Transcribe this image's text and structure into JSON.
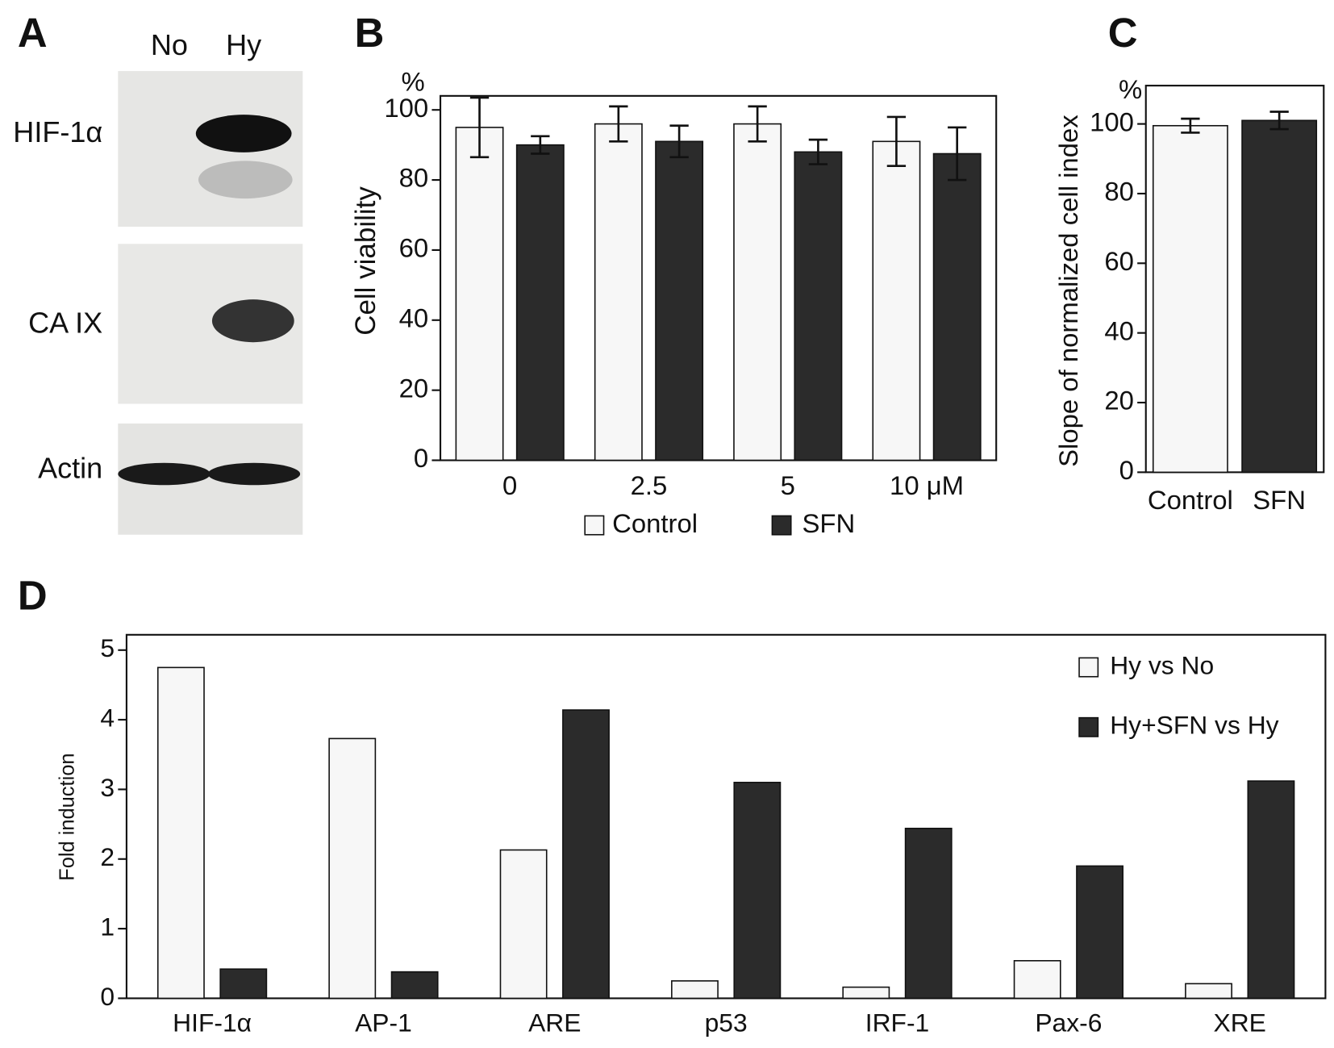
{
  "panel_labels": [
    "A",
    "B",
    "C",
    "D"
  ],
  "blot": {
    "lanes": [
      "No",
      "Hy"
    ],
    "rows": [
      "HIF-1α",
      "CA IX",
      "Actin"
    ]
  },
  "chart_data": [
    {
      "type": "bar",
      "unit": "%",
      "y_label": "Cell viability",
      "categories": [
        "0",
        "2.5",
        "5",
        "10 μM"
      ],
      "series": [
        {
          "name": "Control",
          "color": "#f7f7f7",
          "values": [
            95,
            96,
            96,
            91
          ],
          "errors": [
            8.5,
            5,
            5,
            7
          ]
        },
        {
          "name": "SFN",
          "color": "#2b2b2b",
          "values": [
            90,
            91,
            88,
            87.5
          ],
          "errors": [
            2.5,
            4.5,
            3.5,
            7.5
          ]
        }
      ],
      "ylim": [
        0,
        104
      ],
      "yticks": [
        0,
        20,
        40,
        60,
        80,
        100
      ],
      "legend": "bottom"
    },
    {
      "type": "bar",
      "unit": "%",
      "y_label": "Slope of normalized cell index",
      "categories": [
        "Control",
        "SFN"
      ],
      "values": [
        99.5,
        101
      ],
      "errors": [
        2,
        2.5
      ],
      "colors": [
        "#f7f7f7",
        "#2b2b2b"
      ],
      "ylim": [
        0,
        111
      ],
      "yticks": [
        0,
        20,
        40,
        60,
        80,
        100
      ]
    },
    {
      "type": "bar",
      "y_label": "Fold induction",
      "categories": [
        "HIF-1α",
        "AP-1",
        "ARE",
        "p53",
        "IRF-1",
        "Pax-6",
        "XRE"
      ],
      "series": [
        {
          "name": "Hy vs No",
          "color": "#f7f7f7",
          "values": [
            4.75,
            3.73,
            2.13,
            0.25,
            0.16,
            0.54,
            0.21
          ]
        },
        {
          "name": "Hy+SFN vs Hy",
          "color": "#2b2b2b",
          "values": [
            0.42,
            0.38,
            4.14,
            3.1,
            2.44,
            1.9,
            3.12
          ]
        }
      ],
      "ylim": [
        0,
        5.22
      ],
      "yticks": [
        0,
        1,
        2,
        3,
        4,
        5
      ],
      "legend": "upper right"
    }
  ]
}
